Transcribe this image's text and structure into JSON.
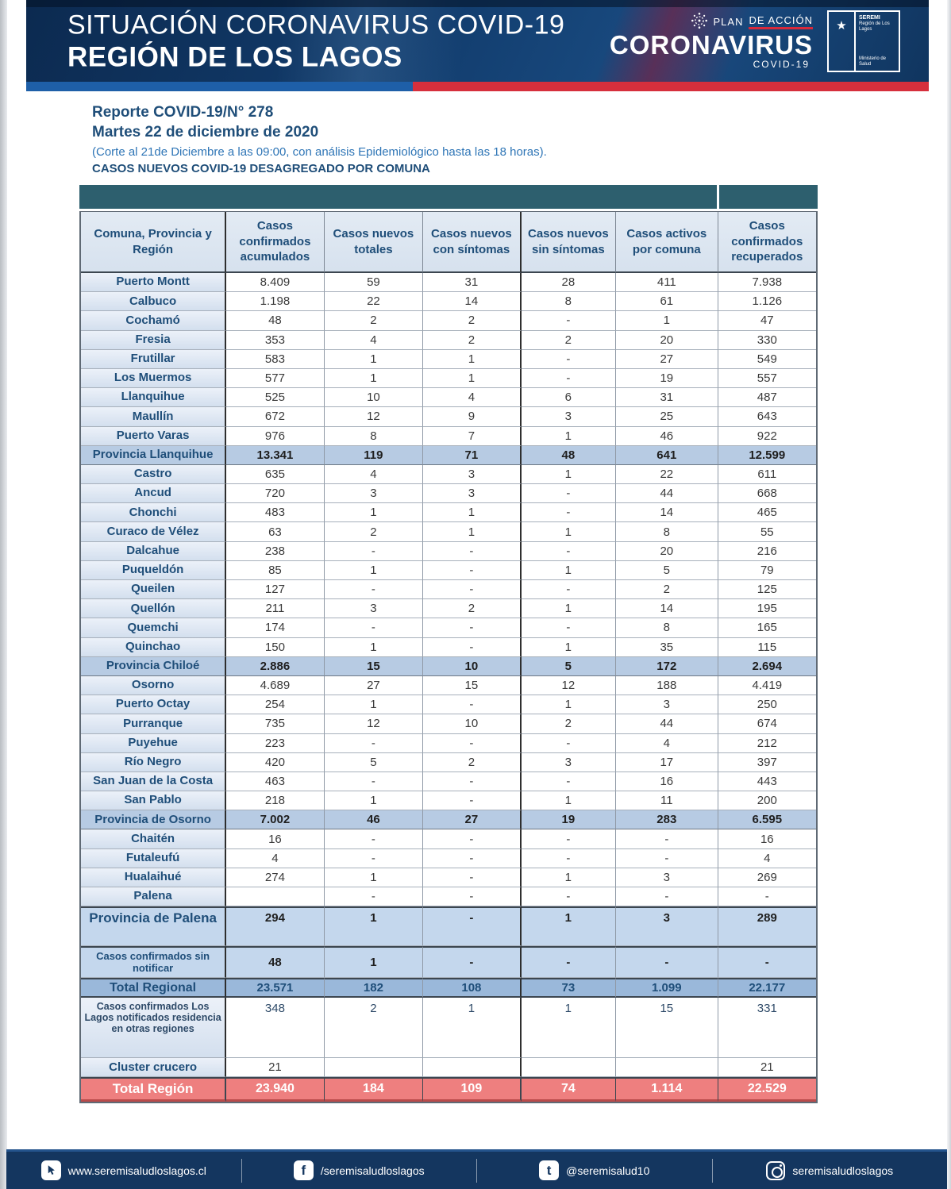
{
  "colors": {
    "banner_navy": "#123d6e",
    "strip_blue": "#1e5fa8",
    "strip_red": "#d62f3c",
    "header_teal": "#2d5f6e",
    "navy_text": "#1f4e79",
    "province_row": "#b7cbe3",
    "total_regional_row": "#9ab8da",
    "total_region_row": "#ee7f7f",
    "footer_navy": "#14365f"
  },
  "banner": {
    "title_line1": "SITUACIÓN CORONAVIRUS COVID-19",
    "title_line2": "REGIÓN DE LOS LAGOS",
    "plan_label_1": "PLAN",
    "plan_label_2": "DE ACCIÓN",
    "brand": "CORONAVIRUS",
    "brand_sub": "COVID-19",
    "gov_logo": {
      "emblem": "★",
      "title": "SEREMI",
      "subtitle": "Región de Los Lagos",
      "ministry": "Ministerio de Salud"
    }
  },
  "report": {
    "line1": "Reporte COVID-19/N° 278",
    "line2": "Martes 22 de diciembre de 2020",
    "line3": "(Corte al 21de Diciembre a las 09:00, con análisis Epidemiológico hasta las 18 horas).",
    "line4": "CASOS NUEVOS COVID-19 DESAGREGADO POR COMUNA"
  },
  "table": {
    "columns": [
      "Comuna, Provincia y Región",
      "Casos confirmados acumulados",
      "Casos nuevos totales",
      "Casos nuevos con síntomas",
      "Casos nuevos sin síntomas",
      "Casos activos por comuna",
      "Casos confirmados recuperados"
    ],
    "rows": [
      {
        "label": "Puerto Montt",
        "values": [
          "8.409",
          "59",
          "31",
          "28",
          "411",
          "7.938"
        ],
        "type": "comuna"
      },
      {
        "label": "Calbuco",
        "values": [
          "1.198",
          "22",
          "14",
          "8",
          "61",
          "1.126"
        ],
        "type": "comuna"
      },
      {
        "label": "Cochamó",
        "values": [
          "48",
          "2",
          "2",
          "-",
          "1",
          "47"
        ],
        "type": "comuna"
      },
      {
        "label": "Fresia",
        "values": [
          "353",
          "4",
          "2",
          "2",
          "20",
          "330"
        ],
        "type": "comuna"
      },
      {
        "label": "Frutillar",
        "values": [
          "583",
          "1",
          "1",
          "-",
          "27",
          "549"
        ],
        "type": "comuna"
      },
      {
        "label": "Los Muermos",
        "values": [
          "577",
          "1",
          "1",
          "-",
          "19",
          "557"
        ],
        "type": "comuna"
      },
      {
        "label": "Llanquihue",
        "values": [
          "525",
          "10",
          "4",
          "6",
          "31",
          "487"
        ],
        "type": "comuna"
      },
      {
        "label": "Maullín",
        "values": [
          "672",
          "12",
          "9",
          "3",
          "25",
          "643"
        ],
        "type": "comuna"
      },
      {
        "label": "Puerto Varas",
        "values": [
          "976",
          "8",
          "7",
          "1",
          "46",
          "922"
        ],
        "type": "comuna"
      },
      {
        "label": "Provincia Llanquihue",
        "values": [
          "13.341",
          "119",
          "71",
          "48",
          "641",
          "12.599"
        ],
        "type": "province"
      },
      {
        "label": "Castro",
        "values": [
          "635",
          "4",
          "3",
          "1",
          "22",
          "611"
        ],
        "type": "comuna"
      },
      {
        "label": "Ancud",
        "values": [
          "720",
          "3",
          "3",
          "-",
          "44",
          "668"
        ],
        "type": "comuna"
      },
      {
        "label": "Chonchi",
        "values": [
          "483",
          "1",
          "1",
          "-",
          "14",
          "465"
        ],
        "type": "comuna"
      },
      {
        "label": "Curaco de Vélez",
        "values": [
          "63",
          "2",
          "1",
          "1",
          "8",
          "55"
        ],
        "type": "comuna"
      },
      {
        "label": "Dalcahue",
        "values": [
          "238",
          "-",
          "-",
          "-",
          "20",
          "216"
        ],
        "type": "comuna"
      },
      {
        "label": "Puqueldón",
        "values": [
          "85",
          "1",
          "-",
          "1",
          "5",
          "79"
        ],
        "type": "comuna"
      },
      {
        "label": "Queilen",
        "values": [
          "127",
          "-",
          "-",
          "-",
          "2",
          "125"
        ],
        "type": "comuna"
      },
      {
        "label": "Quellón",
        "values": [
          "211",
          "3",
          "2",
          "1",
          "14",
          "195"
        ],
        "type": "comuna"
      },
      {
        "label": "Quemchi",
        "values": [
          "174",
          "-",
          "-",
          "-",
          "8",
          "165"
        ],
        "type": "comuna"
      },
      {
        "label": "Quinchao",
        "values": [
          "150",
          "1",
          "-",
          "1",
          "35",
          "115"
        ],
        "type": "comuna"
      },
      {
        "label": "Provincia Chiloé",
        "values": [
          "2.886",
          "15",
          "10",
          "5",
          "172",
          "2.694"
        ],
        "type": "province"
      },
      {
        "label": "Osorno",
        "values": [
          "4.689",
          "27",
          "15",
          "12",
          "188",
          "4.419"
        ],
        "type": "comuna"
      },
      {
        "label": "Puerto Octay",
        "values": [
          "254",
          "1",
          "-",
          "1",
          "3",
          "250"
        ],
        "type": "comuna"
      },
      {
        "label": "Purranque",
        "values": [
          "735",
          "12",
          "10",
          "2",
          "44",
          "674"
        ],
        "type": "comuna"
      },
      {
        "label": "Puyehue",
        "values": [
          "223",
          "-",
          "-",
          "-",
          "4",
          "212"
        ],
        "type": "comuna"
      },
      {
        "label": "Río Negro",
        "values": [
          "420",
          "5",
          "2",
          "3",
          "17",
          "397"
        ],
        "type": "comuna"
      },
      {
        "label": "San Juan de la Costa",
        "values": [
          "463",
          "-",
          "-",
          "-",
          "16",
          "443"
        ],
        "type": "comuna"
      },
      {
        "label": "San Pablo",
        "values": [
          "218",
          "1",
          "-",
          "1",
          "11",
          "200"
        ],
        "type": "comuna"
      },
      {
        "label": "Provincia de Osorno",
        "values": [
          "7.002",
          "46",
          "27",
          "19",
          "283",
          "6.595"
        ],
        "type": "province"
      },
      {
        "label": "Chaitén",
        "values": [
          "16",
          "-",
          "-",
          "-",
          "-",
          "16"
        ],
        "type": "comuna"
      },
      {
        "label": "Futaleufú",
        "values": [
          "4",
          "-",
          "-",
          "-",
          "-",
          "4"
        ],
        "type": "comuna"
      },
      {
        "label": "Hualaihué",
        "values": [
          "274",
          "1",
          "-",
          "1",
          "3",
          "269"
        ],
        "type": "comuna"
      },
      {
        "label": "Palena",
        "values": [
          "",
          "-",
          "-",
          "-",
          "-",
          "-"
        ],
        "type": "comuna"
      },
      {
        "label": "Provincia de Palena",
        "values": [
          "294",
          "1",
          "-",
          "1",
          "3",
          "289"
        ],
        "type": "province-tall"
      },
      {
        "label": "Casos confirmados sin notificar",
        "values": [
          "48",
          "1",
          "-",
          "-",
          "-",
          "-"
        ],
        "type": "special"
      },
      {
        "label": "Total Regional",
        "values": [
          "23.571",
          "182",
          "108",
          "73",
          "1.099",
          "22.177"
        ],
        "type": "total-regional"
      },
      {
        "label": "Casos confirmados Los Lagos  notificados residencia en otras regiones",
        "values": [
          "348",
          "2",
          "1",
          "1",
          "15",
          "331"
        ],
        "type": "info"
      },
      {
        "label": "Cluster crucero",
        "values": [
          "21",
          "",
          "",
          "",
          "",
          "21"
        ],
        "type": "cluster"
      },
      {
        "label": "Total Región",
        "values": [
          "23.940",
          "184",
          "109",
          "74",
          "1.114",
          "22.529"
        ],
        "type": "total-region"
      }
    ]
  },
  "footer": {
    "items": [
      {
        "icon": "web-icon",
        "text": "www.seremisaludloslagos.cl"
      },
      {
        "icon": "facebook-icon",
        "text": "/seremisaludloslagos"
      },
      {
        "icon": "tumblr-icon",
        "text": "@seremisalud10"
      },
      {
        "icon": "instagram-icon",
        "text": "seremisaludloslagos"
      }
    ]
  }
}
